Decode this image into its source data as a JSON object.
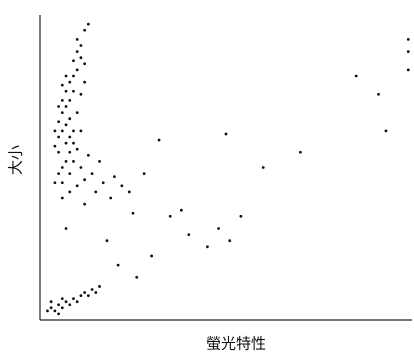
{
  "chart_data": {
    "type": "scatter",
    "x_label": "螢光特性",
    "y_label": "大小",
    "xlim": [
      0,
      100
    ],
    "ylim": [
      0,
      100
    ],
    "x": [
      5,
      6,
      7,
      5,
      6,
      7,
      8,
      4,
      5,
      6,
      7,
      8,
      6,
      7,
      8,
      9,
      8,
      9,
      10,
      9,
      10,
      11,
      10,
      12,
      13,
      11,
      12,
      7,
      5,
      4,
      6,
      8,
      9,
      10,
      11,
      12,
      13,
      6,
      8,
      10,
      14,
      15,
      17,
      19,
      12,
      16,
      20,
      22,
      24,
      9,
      10,
      11,
      12,
      7,
      6,
      5,
      4,
      8,
      9,
      11,
      2,
      3,
      4,
      5,
      6,
      7,
      8,
      9,
      10,
      11,
      12,
      13,
      14,
      15,
      3,
      5,
      6,
      16,
      32,
      50,
      54,
      85,
      93,
      91,
      99,
      99,
      99,
      40,
      51,
      21,
      30,
      7,
      25,
      35,
      45,
      28,
      38,
      18,
      48,
      60,
      70,
      26
    ],
    "series": [
      {
        "color": "#111111",
        "values": [
          60,
          62,
          58,
          55,
          50,
          52,
          55,
          57,
          65,
          68,
          70,
          66,
          72,
          75,
          78,
          80,
          72,
          75,
          82,
          85,
          88,
          90,
          92,
          95,
          97,
          86,
          84,
          64,
          48,
          45,
          45,
          48,
          52,
          56,
          50,
          46,
          54,
          40,
          42,
          44,
          48,
          42,
          45,
          40,
          38,
          52,
          47,
          44,
          42,
          62,
          68,
          74,
          78,
          80,
          77,
          70,
          62,
          60,
          58,
          62,
          3,
          4,
          3,
          5,
          4,
          6,
          5,
          7,
          6,
          8,
          9,
          8,
          10,
          9,
          6,
          2,
          7,
          11,
          59,
          61,
          34,
          80,
          62,
          74,
          82,
          88,
          92,
          28,
          26,
          18,
          21,
          30,
          35,
          34,
          24,
          48,
          36,
          26,
          30,
          50,
          55,
          14
        ]
      }
    ]
  }
}
